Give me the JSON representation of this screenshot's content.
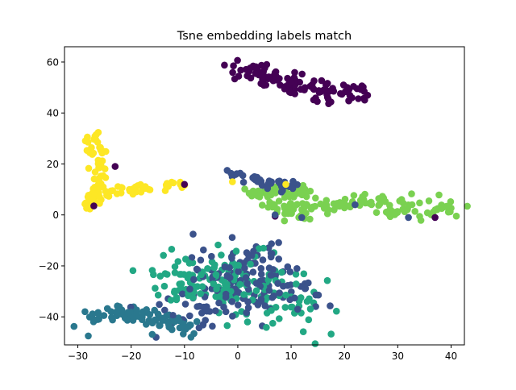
{
  "chart_data": {
    "type": "scatter",
    "title": "Tsne embedding labels match",
    "xlabel": "",
    "ylabel": "",
    "xlim": [
      -32.5,
      42.5
    ],
    "ylim": [
      -51,
      66
    ],
    "xticks": [
      -30,
      -20,
      -10,
      0,
      10,
      20,
      30,
      40
    ],
    "yticks": [
      -40,
      -20,
      0,
      20,
      40,
      60
    ],
    "grid": false,
    "legend": "none",
    "clusters": [
      {
        "color": "#440154",
        "count": 110,
        "path": [
          [
            -2,
            59
          ],
          [
            5,
            55
          ],
          [
            10,
            52
          ],
          [
            18,
            47
          ],
          [
            24,
            48
          ]
        ],
        "spread": 2.0
      },
      {
        "color": "#fde725",
        "count": 70,
        "path": [
          [
            -27,
            31
          ],
          [
            -26,
            22
          ],
          [
            -26,
            12
          ],
          [
            -27,
            6
          ],
          [
            -28,
            3
          ]
        ],
        "spread": 0.9
      },
      {
        "color": "#fde725",
        "count": 45,
        "path": [
          [
            -28,
            7
          ],
          [
            -22,
            9
          ],
          [
            -17,
            10
          ],
          [
            -12,
            12
          ],
          [
            -10,
            12
          ]
        ],
        "spread": 0.9
      },
      {
        "color": "#7ad151",
        "count": 60,
        "path": [
          [
            3,
            9
          ],
          [
            8,
            10
          ],
          [
            13,
            9
          ]
        ],
        "spread": 1.0
      },
      {
        "color": "#7ad151",
        "count": 130,
        "path": [
          [
            5,
            3
          ],
          [
            12,
            2
          ],
          [
            20,
            4
          ],
          [
            27,
            5
          ],
          [
            32,
            1
          ],
          [
            40,
            3
          ]
        ],
        "spread": 1.8
      },
      {
        "color": "#3b528b",
        "count": 40,
        "path": [
          [
            0,
            16
          ],
          [
            3,
            13
          ],
          [
            8,
            12
          ],
          [
            10,
            11
          ]
        ],
        "spread": 1.2
      },
      {
        "color": "#22a884",
        "count": 170,
        "path": [
          [
            -14,
            -30
          ],
          [
            -10,
            -22
          ],
          [
            -5,
            -28
          ],
          [
            0,
            -20
          ],
          [
            5,
            -32
          ],
          [
            10,
            -38
          ]
        ],
        "spread": 4.5
      },
      {
        "color": "#3b528b",
        "count": 160,
        "path": [
          [
            -12,
            -40
          ],
          [
            -7,
            -35
          ],
          [
            -2,
            -28
          ],
          [
            2,
            -15
          ],
          [
            6,
            -33
          ],
          [
            10,
            -30
          ]
        ],
        "spread": 4.5
      },
      {
        "color": "#2a788e",
        "count": 90,
        "path": [
          [
            -27,
            -41
          ],
          [
            -22,
            -39
          ],
          [
            -17,
            -40
          ],
          [
            -12,
            -43
          ],
          [
            -8,
            -44
          ]
        ],
        "spread": 1.6
      }
    ],
    "outliers": [
      {
        "color": "#440154",
        "x": -23,
        "y": 19
      },
      {
        "color": "#440154",
        "x": -27,
        "y": 3.5
      },
      {
        "color": "#440154",
        "x": -10,
        "y": 12
      },
      {
        "color": "#440154",
        "x": 7,
        "y": -0.5
      },
      {
        "color": "#440154",
        "x": 37,
        "y": -1
      },
      {
        "color": "#3b528b",
        "x": 32,
        "y": -1
      },
      {
        "color": "#3b528b",
        "x": 22,
        "y": 4
      },
      {
        "color": "#3b528b",
        "x": 12,
        "y": -1
      },
      {
        "color": "#3b528b",
        "x": 7,
        "y": 0
      },
      {
        "color": "#fde725",
        "x": -1,
        "y": 13
      },
      {
        "color": "#fde725",
        "x": 9,
        "y": 12
      },
      {
        "color": "#7ad151",
        "x": 3,
        "y": 9
      }
    ]
  }
}
